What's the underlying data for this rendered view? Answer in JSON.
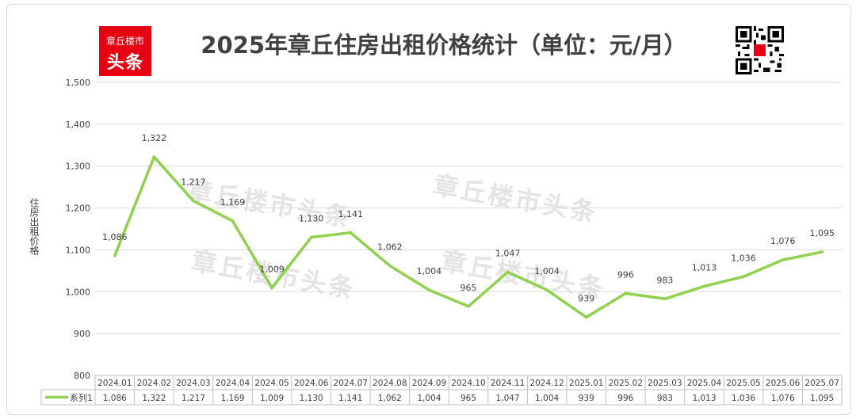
{
  "logo": {
    "line1": "章丘楼市",
    "line2": "头条"
  },
  "title": "2025年章丘住房出租价格统计（单位：元/月）",
  "watermark": "章丘楼市头条",
  "colors": {
    "line": "#92d050",
    "grid": "#d9d9d9",
    "text": "#404040",
    "logo_red": "#e60012"
  },
  "chart_data": {
    "type": "line",
    "title": "2025年章丘住房出租价格统计（单位：元/月）",
    "xlabel": "",
    "ylabel": "住房出租价格",
    "ylim": [
      800,
      1500
    ],
    "yticks": [
      800,
      900,
      1000,
      1100,
      1200,
      1300,
      1400,
      1500
    ],
    "ytick_labels": [
      "800",
      "900",
      "1,000",
      "1,100",
      "1,200",
      "1,300",
      "1,400",
      "1,500"
    ],
    "grid": true,
    "legend": "bottom-left (data table)",
    "categories": [
      "2024.01",
      "2024.02",
      "2024.03",
      "2024.04",
      "2024.05",
      "2024.06",
      "2024.07",
      "2024.08",
      "2024.09",
      "2024.10",
      "2024.11",
      "2024.12",
      "2025.01",
      "2025.02",
      "2025.03",
      "2025.04",
      "2025.05",
      "2025.06",
      "2025.07"
    ],
    "series": [
      {
        "name": "系列1",
        "values": [
          1086,
          1322,
          1217,
          1169,
          1009,
          1130,
          1141,
          1062,
          1004,
          965,
          1047,
          1004,
          939,
          996,
          983,
          1013,
          1036,
          1076,
          1095
        ],
        "labels": [
          "1,086",
          "1,322",
          "1,217",
          "1,169",
          "1,009",
          "1,130",
          "1,141",
          "1,062",
          "1,004",
          "965",
          "1,047",
          "1,004",
          "939",
          "996",
          "983",
          "1,013",
          "1,036",
          "1,076",
          "1,095"
        ]
      }
    ]
  }
}
